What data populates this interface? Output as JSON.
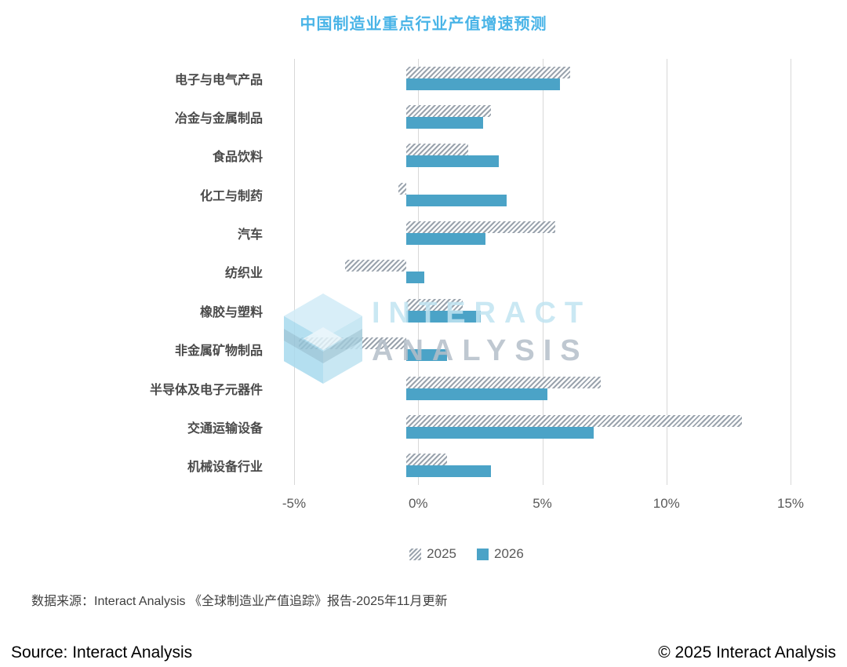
{
  "title": "中国制造业重点行业产值增速预测",
  "chart_data": {
    "type": "bar",
    "orientation": "horizontal",
    "title": "中国制造业重点行业产值增速预测",
    "categories": [
      "电子与电气产品",
      "冶金与金属制品",
      "食品饮料",
      "化工与制药",
      "汽车",
      "纺织业",
      "橡胶与塑料",
      "非金属矿物制品",
      "半导体及电子元器件",
      "交通运输设备",
      "机械设备行业"
    ],
    "series": [
      {
        "name": "2025",
        "style": "hatched",
        "color": "#9aa3ad",
        "values": [
          6.4,
          3.3,
          2.4,
          -0.3,
          5.8,
          -2.4,
          2.2,
          -4.2,
          7.6,
          13.1,
          1.6
        ]
      },
      {
        "name": "2026",
        "style": "solid",
        "color": "#4BA3C7",
        "values": [
          6.0,
          3.0,
          3.6,
          3.9,
          3.1,
          0.7,
          2.9,
          1.6,
          5.5,
          7.3,
          3.3
        ]
      }
    ],
    "xlim": [
      -5,
      15
    ],
    "x_ticks": [
      "-5%",
      "0%",
      "5%",
      "10%",
      "15%"
    ],
    "x_tick_values": [
      -5,
      0,
      5,
      10,
      15
    ],
    "grid": "vertical",
    "legend_position": "bottom",
    "unit": "%"
  },
  "watermark": {
    "line1": "INTERACT",
    "line2": "ANALYSIS"
  },
  "source_note": "数据来源：Interact Analysis 《全球制造业产值追踪》报告-2025年11月更新",
  "footer": {
    "left": "Source: Interact Analysis",
    "right": "© 2025 Interact Analysis"
  },
  "colors": {
    "title": "#49b4e7",
    "bar_2026": "#4BA3C7",
    "hatch_stripe": "#9aa3ad",
    "gridline": "#d8d8d8",
    "axis_text": "#595959",
    "watermark_blue": "#c1e4f2",
    "watermark_gray": "#b5bfc9"
  }
}
